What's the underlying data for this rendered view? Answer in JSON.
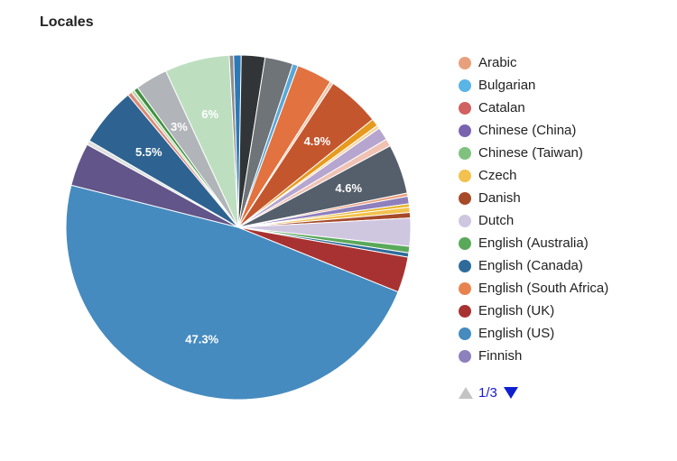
{
  "chart_data": {
    "type": "pie",
    "title": "Locales",
    "legend_position": "right",
    "slices": [
      {
        "name": "English (US)",
        "value": 47.3,
        "color": "#458bbf",
        "label": "47.3%"
      },
      {
        "name": "",
        "value": 4.0,
        "color": "#62558a"
      },
      {
        "name": "",
        "value": 0.4,
        "color": "#dfdfdf"
      },
      {
        "name": "",
        "value": 5.5,
        "color": "#2e6391",
        "label": "5.5%"
      },
      {
        "name": "",
        "value": 0.4,
        "color": "#dd8a7a"
      },
      {
        "name": "",
        "value": 0.3,
        "color": "#b6d7a8"
      },
      {
        "name": "",
        "value": 0.4,
        "color": "#3f8f3f"
      },
      {
        "name": "",
        "value": 3.0,
        "color": "#b1b4b9",
        "label": "3%"
      },
      {
        "name": "",
        "value": 6.0,
        "color": "#bddfc0",
        "label": "6%"
      },
      {
        "name": "",
        "value": 0.4,
        "color": "#8c8c8c"
      },
      {
        "name": "",
        "value": 0.7,
        "color": "#2d79b5"
      },
      {
        "name": "",
        "value": 2.2,
        "color": "#323538"
      },
      {
        "name": "",
        "value": 2.6,
        "color": "#6e7478"
      },
      {
        "name": "",
        "value": 0.5,
        "color": "#59a8da"
      },
      {
        "name": "",
        "value": 3.3,
        "color": "#e2723f"
      },
      {
        "name": "",
        "value": 0.3,
        "color": "#f2c4a8"
      },
      {
        "name": "",
        "value": 4.9,
        "color": "#c4562e",
        "label": "4.9%"
      },
      {
        "name": "",
        "value": 0.7,
        "color": "#e79a1e"
      },
      {
        "name": "",
        "value": 0.3,
        "color": "#f5d59b"
      },
      {
        "name": "",
        "value": 1.2,
        "color": "#b6a5cf"
      },
      {
        "name": "",
        "value": 0.7,
        "color": "#f0c2b4"
      },
      {
        "name": "",
        "value": 4.6,
        "color": "#555f6b",
        "label": "4.6%"
      },
      {
        "name": "",
        "value": 0.3,
        "color": "#ea9f7c"
      },
      {
        "name": "Finnish",
        "value": 0.7,
        "color": "#8e7fbd"
      },
      {
        "name": "",
        "value": 0.3,
        "color": "#e6b52c"
      },
      {
        "name": "Czech",
        "value": 0.5,
        "color": "#f2c14e"
      },
      {
        "name": "Danish",
        "value": 0.5,
        "color": "#a64a2a"
      },
      {
        "name": "Dutch",
        "value": 2.6,
        "color": "#cfc6e0"
      },
      {
        "name": "English (Australia)",
        "value": 0.6,
        "color": "#5aa95a"
      },
      {
        "name": "English (Canada)",
        "value": 0.4,
        "color": "#2f6b9a"
      },
      {
        "name": "English (UK)",
        "value": 3.3,
        "color": "#a83232"
      }
    ],
    "legend": [
      {
        "name": "Arabic",
        "color": "#e8a07c"
      },
      {
        "name": "Bulgarian",
        "color": "#5ab4e6"
      },
      {
        "name": "Catalan",
        "color": "#d16060"
      },
      {
        "name": "Chinese (China)",
        "color": "#7a64ae"
      },
      {
        "name": "Chinese (Taiwan)",
        "color": "#7fc27f"
      },
      {
        "name": "Czech",
        "color": "#f2c14e"
      },
      {
        "name": "Danish",
        "color": "#a64a2a"
      },
      {
        "name": "Dutch",
        "color": "#cfc6e0"
      },
      {
        "name": "English (Australia)",
        "color": "#5aa95a"
      },
      {
        "name": "English (Canada)",
        "color": "#2f6b9a"
      },
      {
        "name": "English (South Africa)",
        "color": "#e8834f"
      },
      {
        "name": "English (UK)",
        "color": "#a83232"
      },
      {
        "name": "English (US)",
        "color": "#458bbf"
      },
      {
        "name": "Finnish",
        "color": "#8e7fbd"
      }
    ]
  },
  "pager": {
    "text": "1/3",
    "up_icon": "triangle-up-icon",
    "down_icon": "triangle-down-icon"
  }
}
